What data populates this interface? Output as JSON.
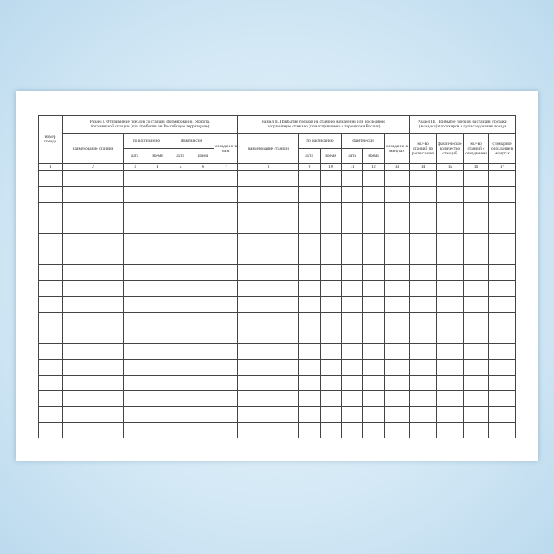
{
  "headers": {
    "train_no": "номер поезда",
    "section1": "Раздел I. Отправление поездов  со станции формирования, оборота, пограничной станции (при прибытии  на Российскую территорию)",
    "section2": "Раздел II. Прибытие поездов  на станцию назначения или последнюю пограничную станцию (при отправлении с территории России)",
    "section3": "Раздел III. Прибытие поездов на станции посадки (высадки) пассажиров в пути следования поезда",
    "station_name": "наименование станции",
    "scheduled": "по расписанию",
    "actual": "фактически",
    "date": "дата",
    "time": "время",
    "delay_min": "опоздание в мин.",
    "delay_minutes": "опоздание в минутах",
    "col14": "кол-во станций по расписанию",
    "col15": "факти-ческое количество станций",
    "col16": "кол-во станций с опозданием",
    "col17": "суммарное опоздание в минутах"
  },
  "column_numbers": [
    "1",
    "2",
    "3",
    "4",
    "5",
    "6",
    "7",
    "8",
    "9",
    "10",
    "11",
    "12",
    "13",
    "14",
    "15",
    "16",
    "17"
  ],
  "empty_rows": 17
}
